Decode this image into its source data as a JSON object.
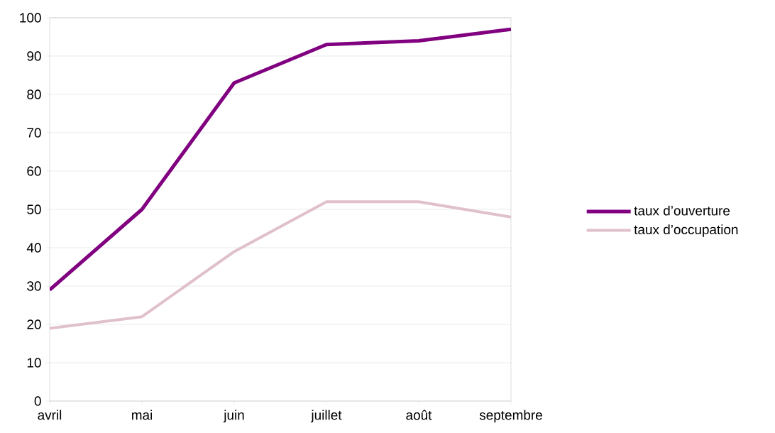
{
  "chart_data": {
    "type": "line",
    "categories": [
      "avril",
      "mai",
      "juin",
      "juillet",
      "août",
      "septembre"
    ],
    "series": [
      {
        "name": "taux d’ouverture",
        "color": "#800080",
        "values": [
          29,
          50,
          83,
          93,
          94,
          97
        ]
      },
      {
        "name": "taux d’occupation",
        "color": "#e0c0cc",
        "values": [
          19,
          22,
          39,
          52,
          52,
          48
        ]
      }
    ],
    "ylim": [
      0,
      100
    ],
    "yticks": [
      0,
      10,
      20,
      30,
      40,
      50,
      60,
      70,
      80,
      90,
      100
    ],
    "grid": "y",
    "legend": "right",
    "marker": "none",
    "line_style": "solid"
  }
}
